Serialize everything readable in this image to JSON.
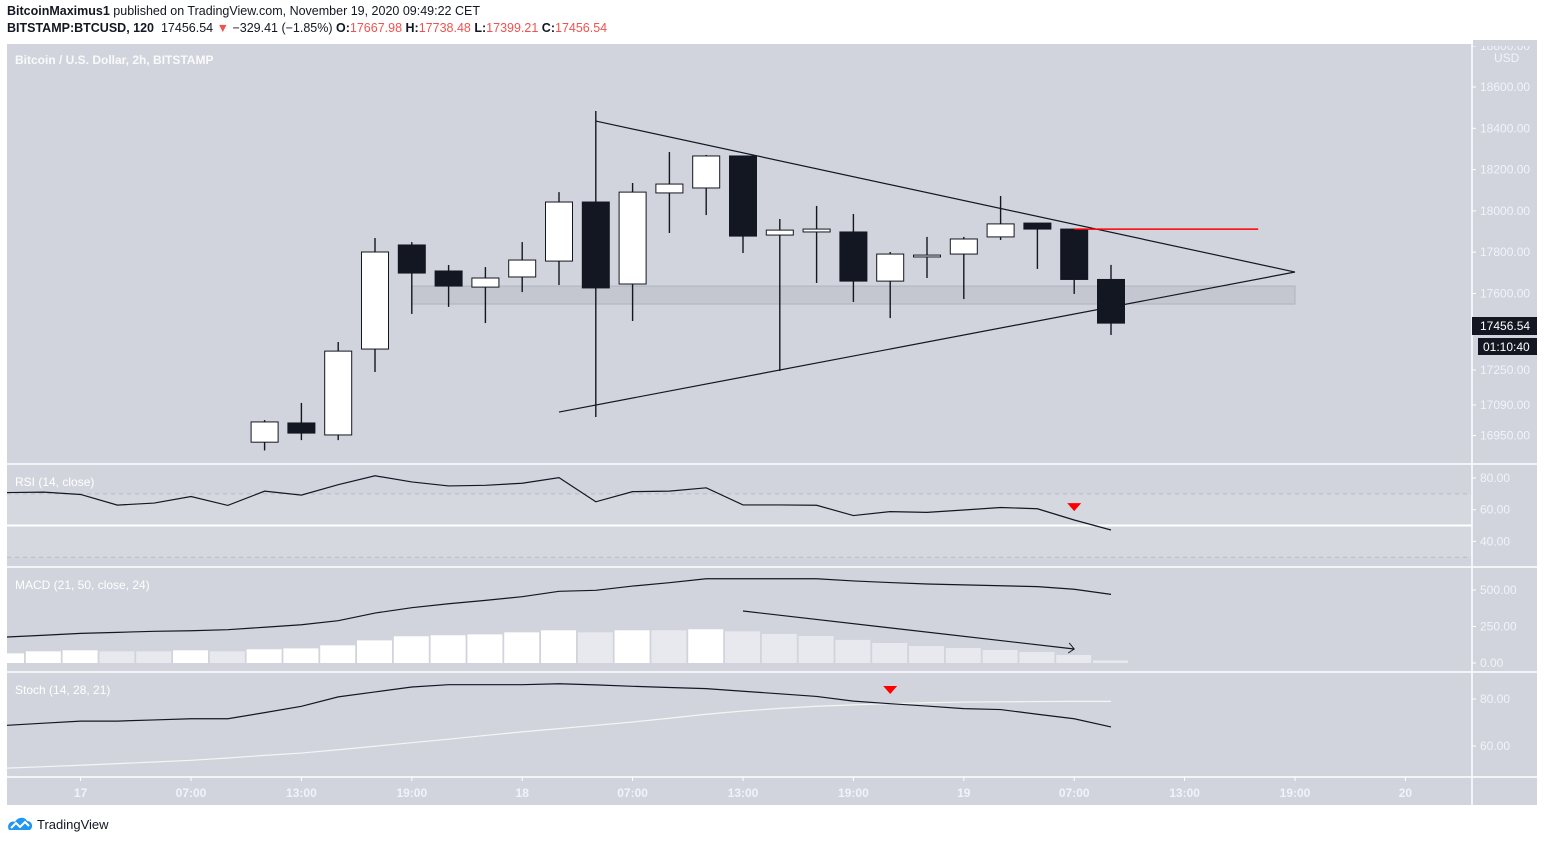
{
  "header": {
    "author": "BitcoinMaximus1",
    "published": "published on TradingView.com, November 19, 2020 09:49:22 CET",
    "symbol": "BITSTAMP:BTCUSD, 120",
    "last": "17456.54",
    "change_icon": "triangle-down-icon",
    "change": "−329.41 (−1.85%)",
    "o_label": "O:",
    "o": "17667.98",
    "h_label": "H:",
    "h": "17738.48",
    "l_label": "L:",
    "l": "17399.21",
    "c_label": "C:",
    "c": "17456.54"
  },
  "footer": {
    "brand": "TradingView",
    "icon": "tradingview-logo-icon"
  },
  "colors": {
    "background": "#d1d4dc",
    "bull": "#ffffff",
    "bear": "#131722",
    "down": "#ef5350",
    "marker": "#ff0000",
    "axis_text": "#f0f3fa"
  },
  "chart_data": {
    "type": "candlestick",
    "title": "Bitcoin / U.S. Dollar, 2h, BITSTAMP",
    "currency": "USD",
    "price_ticks": [
      18800,
      18600,
      18400,
      18200,
      18000,
      17800,
      17600,
      17250,
      17090,
      16950
    ],
    "price_tick_labels": [
      "18800.00",
      "18600.00",
      "18400.00",
      "18200.00",
      "18000.00",
      "17800.00",
      "17600.00",
      "17250.00",
      "17090.00",
      "16950.00"
    ],
    "last_price_label": "17456.54",
    "countdown": "01:10:40",
    "x": [
      "2020-11-16T21:00",
      "2020-11-16T23:00",
      "2020-11-17T01:00",
      "2020-11-17T03:00",
      "2020-11-17T05:00",
      "2020-11-17T07:00",
      "2020-11-17T09:00",
      "2020-11-17T11:00",
      "2020-11-17T13:00",
      "2020-11-17T15:00",
      "2020-11-17T17:00",
      "2020-11-17T19:00",
      "2020-11-17T21:00",
      "2020-11-17T23:00",
      "2020-11-18T01:00",
      "2020-11-18T03:00",
      "2020-11-18T05:00",
      "2020-11-18T07:00",
      "2020-11-18T09:00",
      "2020-11-18T11:00",
      "2020-11-18T13:00",
      "2020-11-18T15:00",
      "2020-11-18T17:00",
      "2020-11-18T19:00",
      "2020-11-18T21:00",
      "2020-11-18T23:00",
      "2020-11-19T01:00",
      "2020-11-19T03:00",
      "2020-11-19T05:00",
      "2020-11-19T07:00",
      "2020-11-19T09:00"
    ],
    "time_ticks": [
      {
        "label": "17",
        "time": "2020-11-17T01:00"
      },
      {
        "label": "07:00",
        "time": "2020-11-17T07:00"
      },
      {
        "label": "13:00",
        "time": "2020-11-17T13:00"
      },
      {
        "label": "19:00",
        "time": "2020-11-17T19:00"
      },
      {
        "label": "18",
        "time": "2020-11-18T01:00"
      },
      {
        "label": "07:00",
        "time": "2020-11-18T07:00"
      },
      {
        "label": "13:00",
        "time": "2020-11-18T13:00"
      },
      {
        "label": "19:00",
        "time": "2020-11-18T19:00"
      },
      {
        "label": "19",
        "time": "2020-11-19T01:00"
      },
      {
        "label": "07:00",
        "time": "2020-11-19T07:00"
      },
      {
        "label": "13:00",
        "time": "2020-11-19T13:00"
      },
      {
        "label": "19:00",
        "time": "2020-11-19T19:00"
      },
      {
        "label": "20",
        "time": "2020-11-20T01:00"
      }
    ],
    "candles": [
      {
        "t": "2020-11-17T11:00",
        "o": 16880,
        "h": 16987,
        "l": 16840,
        "c": 16978
      },
      {
        "t": "2020-11-17T13:00",
        "o": 16973,
        "h": 17070,
        "l": 16890,
        "c": 16924
      },
      {
        "t": "2020-11-17T15:00",
        "o": 16915,
        "h": 17365,
        "l": 16890,
        "c": 17321
      },
      {
        "t": "2020-11-17T17:00",
        "o": 17331,
        "h": 17869,
        "l": 17220,
        "c": 17801
      },
      {
        "t": "2020-11-17T19:00",
        "o": 17835,
        "h": 17849,
        "l": 17501,
        "c": 17699
      },
      {
        "t": "2020-11-17T21:00",
        "o": 17709,
        "h": 17738,
        "l": 17535,
        "c": 17636
      },
      {
        "t": "2020-11-17T23:00",
        "o": 17631,
        "h": 17728,
        "l": 17457,
        "c": 17675
      },
      {
        "t": "2020-11-18T01:00",
        "o": 17680,
        "h": 17849,
        "l": 17607,
        "c": 17762
      },
      {
        "t": "2020-11-18T03:00",
        "o": 17757,
        "h": 18091,
        "l": 17641,
        "c": 18043
      },
      {
        "t": "2020-11-18T05:00",
        "o": 18043,
        "h": 18484,
        "l": 17002,
        "c": 17627
      },
      {
        "t": "2020-11-18T07:00",
        "o": 17646,
        "h": 18135,
        "l": 17467,
        "c": 18091
      },
      {
        "t": "2020-11-18T09:00",
        "o": 18087,
        "h": 18285,
        "l": 17893,
        "c": 18130
      },
      {
        "t": "2020-11-18T11:00",
        "o": 18111,
        "h": 18271,
        "l": 17980,
        "c": 18266
      },
      {
        "t": "2020-11-18T13:00",
        "o": 18266,
        "h": 18266,
        "l": 17796,
        "c": 17878
      },
      {
        "t": "2020-11-18T15:00",
        "o": 17883,
        "h": 17961,
        "l": 17225,
        "c": 17907
      },
      {
        "t": "2020-11-18T17:00",
        "o": 17898,
        "h": 18024,
        "l": 17651,
        "c": 17912
      },
      {
        "t": "2020-11-18T19:00",
        "o": 17898,
        "h": 17985,
        "l": 17559,
        "c": 17660
      },
      {
        "t": "2020-11-18T21:00",
        "o": 17660,
        "h": 17801,
        "l": 17481,
        "c": 17791
      },
      {
        "t": "2020-11-18T23:00",
        "o": 17777,
        "h": 17874,
        "l": 17675,
        "c": 17786
      },
      {
        "t": "2020-11-19T01:00",
        "o": 17791,
        "h": 17874,
        "l": 17573,
        "c": 17864
      },
      {
        "t": "2020-11-19T03:00",
        "o": 17874,
        "h": 18072,
        "l": 17859,
        "c": 17937
      },
      {
        "t": "2020-11-19T05:00",
        "o": 17941,
        "h": 17941,
        "l": 17719,
        "c": 17912
      },
      {
        "t": "2020-11-19T07:00",
        "o": 17912,
        "h": 17912,
        "l": 17598,
        "c": 17668
      },
      {
        "t": "2020-11-19T09:00",
        "o": 17667.98,
        "h": 17738.48,
        "l": 17399.21,
        "c": 17456.54
      }
    ],
    "drawings": {
      "upper_trendline": {
        "from": {
          "t": "2020-11-18T05:00",
          "p": 18435
        },
        "to": {
          "t": "2020-11-19T19:00",
          "p": 17704
        }
      },
      "lower_trendline": {
        "from": {
          "t": "2020-11-18T03:00",
          "p": 17026
        },
        "to": {
          "t": "2020-11-19T19:00",
          "p": 17704
        }
      },
      "resistance_line": {
        "from": {
          "t": "2020-11-19T07:00",
          "p": 17912
        },
        "to": {
          "t": "2020-11-19T17:00",
          "p": 17912
        },
        "color": "#ff0000"
      },
      "support_zone": {
        "from": "2020-11-17T19:00",
        "to": "2020-11-19T19:00",
        "low": 17549,
        "high": 17636
      }
    },
    "rsi": {
      "label": "RSI (14, close)",
      "ticks": [
        80,
        60,
        40
      ],
      "tick_labels": [
        "80.00",
        "60.00",
        "40.00"
      ],
      "bands": [
        70,
        30
      ],
      "midline": 50,
      "values": [
        70.8,
        71.1,
        69.6,
        62.9,
        64.2,
        68.3,
        62.7,
        71.7,
        69.2,
        75.8,
        81.4,
        77.5,
        75,
        75.4,
        76.7,
        80.2,
        65,
        71.4,
        71.7,
        73.8,
        63,
        63,
        62.8,
        56.3,
        58.8,
        58.3,
        59.8,
        61.4,
        60.6,
        53.5,
        47.2
      ],
      "marker": {
        "t": "2020-11-19T07:00",
        "v": 61,
        "icon": "triangle-down-icon"
      }
    },
    "macd": {
      "label": "MACD (21, 50, close, 24)",
      "ticks": [
        500,
        250,
        0
      ],
      "tick_labels": [
        "500.00",
        "250.00",
        "0.00"
      ],
      "macd": [
        178,
        190,
        203,
        210,
        217,
        221,
        228,
        245,
        262,
        290,
        342,
        379,
        406,
        429,
        454,
        491,
        498,
        527,
        550,
        577,
        577,
        577,
        577,
        562,
        551,
        541,
        535,
        529,
        523,
        505,
        470
      ],
      "histogram": [
        66,
        80,
        87,
        80,
        80,
        87,
        80,
        94,
        100,
        121,
        155,
        183,
        190,
        196,
        210,
        224,
        210,
        224,
        224,
        231,
        217,
        199,
        185,
        158,
        137,
        116,
        103,
        89,
        75,
        55,
        18
      ],
      "arrow": {
        "from": {
          "t": "2020-11-18T13:00",
          "v": 356
        },
        "to": {
          "t": "2020-11-19T07:00",
          "v": 96
        }
      }
    },
    "stoch": {
      "label": "Stoch (14, 28, 21)",
      "ticks": [
        80,
        60
      ],
      "tick_labels": [
        "80.00",
        "60.00"
      ],
      "k": [
        68.8,
        69.7,
        70.6,
        70.6,
        71.1,
        71.6,
        71.6,
        74.2,
        76.9,
        80.9,
        83,
        85.1,
        86.1,
        86.1,
        86.1,
        86.5,
        86,
        85.4,
        84.9,
        84.4,
        83.3,
        82.2,
        81.1,
        79.1,
        78,
        77,
        75.9,
        75.5,
        73.5,
        71.6,
        68.1
      ],
      "d": [
        50.6,
        51.2,
        51.8,
        52.5,
        53.2,
        53.9,
        54.9,
        56,
        57,
        58.4,
        59.9,
        61.4,
        62.9,
        64.5,
        66,
        67.4,
        68.8,
        70.2,
        71.8,
        73.5,
        74.9,
        76,
        76.9,
        77.5,
        78,
        78.4,
        78.7,
        78.8,
        78.9,
        79,
        79
      ],
      "marker": {
        "t": "2020-11-18T21:00",
        "v": 83.4,
        "icon": "triangle-down-icon"
      }
    }
  }
}
